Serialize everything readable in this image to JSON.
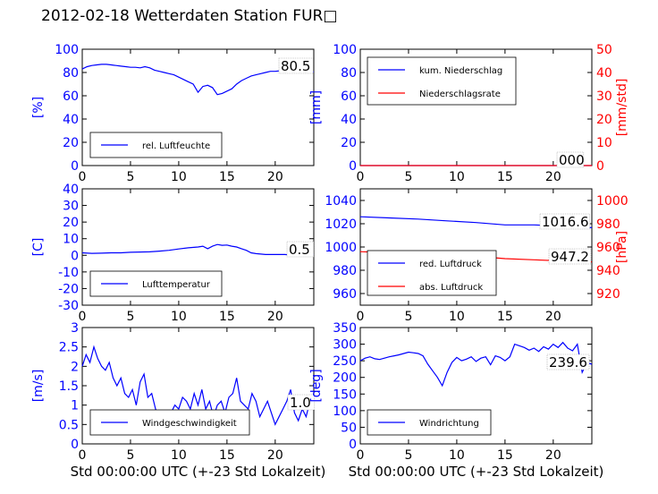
{
  "figure_title": "2012-02-18 Wetterdaten Station FUR□",
  "colors": {
    "blue": "#0000ff",
    "red": "#ff0000",
    "black": "#000000"
  },
  "chart_data": [
    {
      "type": "line",
      "panel": "humidity",
      "ylabel": "[%]",
      "xlabel": "",
      "xlim": [
        0,
        24
      ],
      "ylim": [
        0,
        100
      ],
      "xticks": [
        0,
        5,
        10,
        15,
        20
      ],
      "yticks": [
        0,
        20,
        40,
        60,
        80,
        100
      ],
      "legend_placement": "lower-left",
      "last_value_label": "80.5",
      "series": [
        {
          "name": "rel. Luftfeuchte",
          "color": "#0000ff",
          "x": [
            0,
            0.5,
            1,
            1.5,
            2,
            2.5,
            3,
            3.5,
            4,
            4.5,
            5,
            5.5,
            6,
            6.5,
            7,
            7.5,
            8,
            8.5,
            9,
            9.5,
            10,
            10.5,
            11,
            11.5,
            12,
            12.5,
            13,
            13.5,
            14,
            14.5,
            15,
            15.5,
            16,
            16.5,
            17,
            17.5,
            18,
            18.5,
            19,
            19.5,
            20,
            20.5,
            21,
            21.5,
            22,
            22.5,
            23,
            23.5,
            24
          ],
          "y": [
            83,
            85,
            86,
            86.5,
            87,
            87,
            86.5,
            86,
            85.5,
            85,
            84.5,
            84.5,
            84,
            85,
            84,
            82,
            81,
            80,
            79,
            78,
            76,
            74,
            72,
            70,
            63,
            68,
            69,
            67,
            61,
            62,
            64,
            66,
            70,
            73,
            75,
            77,
            78,
            79,
            80,
            81,
            81,
            81.5,
            82,
            81,
            80,
            81,
            80,
            80.5,
            80.5
          ]
        }
      ]
    },
    {
      "type": "line",
      "panel": "precipitation",
      "ylabel": "[mm]",
      "y2label": "[mm/std]",
      "xlabel": "",
      "xlim": [
        0,
        24
      ],
      "ylim": [
        0,
        100
      ],
      "y2lim": [
        0,
        50
      ],
      "xticks": [
        0,
        5,
        10,
        15,
        20
      ],
      "yticks": [
        0,
        20,
        40,
        60,
        80,
        100
      ],
      "y2ticks": [
        0,
        10,
        20,
        30,
        40,
        50
      ],
      "legend_placement": "top-left",
      "last_value_label": "000",
      "series": [
        {
          "name": "kum. Niederschlag",
          "color": "#0000ff",
          "axis": "left",
          "x": [
            0,
            24
          ],
          "y": [
            0,
            0
          ]
        },
        {
          "name": "Niederschlagsrate",
          "color": "#ff0000",
          "axis": "right",
          "x": [
            0,
            24
          ],
          "y": [
            0,
            0
          ]
        }
      ]
    },
    {
      "type": "line",
      "panel": "temperature",
      "ylabel": "[C]",
      "xlabel": "",
      "xlim": [
        0,
        24
      ],
      "ylim": [
        -30,
        40
      ],
      "xticks": [
        0,
        5,
        10,
        15,
        20
      ],
      "yticks": [
        -30,
        -20,
        -10,
        0,
        10,
        20,
        30,
        40
      ],
      "legend_placement": "lower-left",
      "last_value_label": "0.5",
      "series": [
        {
          "name": "Lufttemperatur",
          "color": "#0000ff",
          "x": [
            0,
            1,
            2,
            3,
            4,
            5,
            6,
            7,
            8,
            9,
            10,
            11,
            12,
            12.5,
            13,
            13.5,
            14,
            14.5,
            15,
            15.5,
            16,
            16.5,
            17,
            17.5,
            18,
            19,
            20,
            21,
            22,
            23,
            24
          ],
          "y": [
            1.5,
            1.2,
            1.3,
            1.5,
            1.5,
            1.8,
            2,
            2.1,
            2.5,
            3,
            3.8,
            4.5,
            5,
            5.5,
            4,
            5.5,
            6.5,
            6,
            6.2,
            5.5,
            5,
            4,
            3,
            1.5,
            1,
            0.5,
            0.5,
            0.5,
            0,
            0.3,
            0.5
          ]
        }
      ]
    },
    {
      "type": "line",
      "panel": "pressure",
      "ylabel": "",
      "y2label": "[hPa]",
      "xlabel": "",
      "xlim": [
        0,
        24
      ],
      "ylim": [
        950,
        1050
      ],
      "y2lim": [
        910,
        1010
      ],
      "xticks": [
        0,
        5,
        10,
        15,
        20
      ],
      "yticks": [
        960,
        980,
        1000,
        1020,
        1040
      ],
      "y2ticks": [
        920,
        940,
        960,
        980,
        1000
      ],
      "legend_placement": "lower-left",
      "value_labels": [
        "1016.6",
        "947.2"
      ],
      "series": [
        {
          "name": "red. Luftdruck",
          "color": "#0000ff",
          "axis": "left",
          "x": [
            0,
            3,
            6,
            9,
            12,
            15,
            18,
            21,
            24
          ],
          "y": [
            1026,
            1025,
            1024,
            1022.5,
            1021,
            1019,
            1019,
            1018,
            1016.6
          ]
        },
        {
          "name": "abs. Luftdruck",
          "color": "#ff0000",
          "axis": "left",
          "x": [
            0,
            3,
            6,
            9,
            12,
            15,
            18,
            21,
            24
          ],
          "y": [
            996,
            995,
            994,
            993,
            992,
            990,
            989,
            988,
            987.2
          ]
        }
      ]
    },
    {
      "type": "line",
      "panel": "wind_speed",
      "ylabel": "[m/s]",
      "xlabel": "Std 00:00:00 UTC (+-23 Std Lokalzeit)",
      "xlim": [
        0,
        24
      ],
      "ylim": [
        0,
        3
      ],
      "xticks": [
        0,
        5,
        10,
        15,
        20
      ],
      "yticks": [
        0,
        0.5,
        1,
        1.5,
        2,
        2.5,
        3
      ],
      "legend_placement": "lower-left",
      "last_value_label": "1.0",
      "series": [
        {
          "name": "Windgeschwindigkeit",
          "color": "#0000ff",
          "x": [
            0,
            0.4,
            0.8,
            1.2,
            1.6,
            2,
            2.4,
            2.8,
            3.2,
            3.6,
            4,
            4.4,
            4.8,
            5.2,
            5.6,
            6,
            6.4,
            6.8,
            7.2,
            7.6,
            8,
            8.4,
            8.8,
            9.2,
            9.6,
            10,
            10.4,
            10.8,
            11.2,
            11.6,
            12,
            12.4,
            12.8,
            13.2,
            13.6,
            14,
            14.4,
            14.8,
            15.2,
            15.6,
            16,
            16.4,
            16.8,
            17.2,
            17.6,
            18,
            18.4,
            18.8,
            19.2,
            19.6,
            20,
            20.4,
            20.8,
            21.2,
            21.6,
            22,
            22.4,
            22.8,
            23.2,
            23.6,
            24
          ],
          "y": [
            2.0,
            2.3,
            2.1,
            2.5,
            2.2,
            2.0,
            1.9,
            2.1,
            1.7,
            1.5,
            1.7,
            1.3,
            1.2,
            1.4,
            1.0,
            1.6,
            1.8,
            1.2,
            1.3,
            0.9,
            0.7,
            0.5,
            0.6,
            0.8,
            1.0,
            0.9,
            1.2,
            1.1,
            0.9,
            1.3,
            1.0,
            1.4,
            0.9,
            1.1,
            0.7,
            1.0,
            1.1,
            0.8,
            1.2,
            1.3,
            1.7,
            1.1,
            1.0,
            0.9,
            1.3,
            1.1,
            0.7,
            0.9,
            1.1,
            0.8,
            0.5,
            0.7,
            0.9,
            1.1,
            1.4,
            0.8,
            0.6,
            0.9,
            0.7,
            1.1,
            1.0
          ]
        }
      ]
    },
    {
      "type": "line",
      "panel": "wind_direction",
      "ylabel": "[deg]",
      "xlabel": "Std 00:00:00 UTC (+-23 Std Lokalzeit)",
      "xlim": [
        0,
        24
      ],
      "ylim": [
        0,
        350
      ],
      "xticks": [
        0,
        5,
        10,
        15,
        20
      ],
      "yticks": [
        0,
        50,
        100,
        150,
        200,
        250,
        300,
        350
      ],
      "legend_placement": "lower-left",
      "last_value_label": "239.6",
      "series": [
        {
          "name": "Windrichtung",
          "color": "#0000ff",
          "x": [
            0,
            0.5,
            1,
            1.5,
            2,
            2.5,
            3,
            3.5,
            4,
            4.5,
            5,
            5.5,
            6,
            6.5,
            7,
            7.5,
            8,
            8.5,
            9,
            9.5,
            10,
            10.5,
            11,
            11.5,
            12,
            12.5,
            13,
            13.5,
            14,
            14.5,
            15,
            15.5,
            16,
            16.5,
            17,
            17.5,
            18,
            18.5,
            19,
            19.5,
            20,
            20.5,
            21,
            21.5,
            22,
            22.5,
            23,
            23.5,
            24
          ],
          "y": [
            250,
            258,
            262,
            256,
            254,
            258,
            262,
            265,
            268,
            272,
            276,
            274,
            272,
            265,
            240,
            220,
            200,
            175,
            215,
            245,
            260,
            250,
            255,
            262,
            248,
            258,
            262,
            238,
            265,
            260,
            250,
            262,
            300,
            295,
            290,
            282,
            288,
            278,
            292,
            285,
            300,
            290,
            305,
            288,
            280,
            300,
            215,
            245,
            239.6
          ]
        }
      ]
    }
  ]
}
